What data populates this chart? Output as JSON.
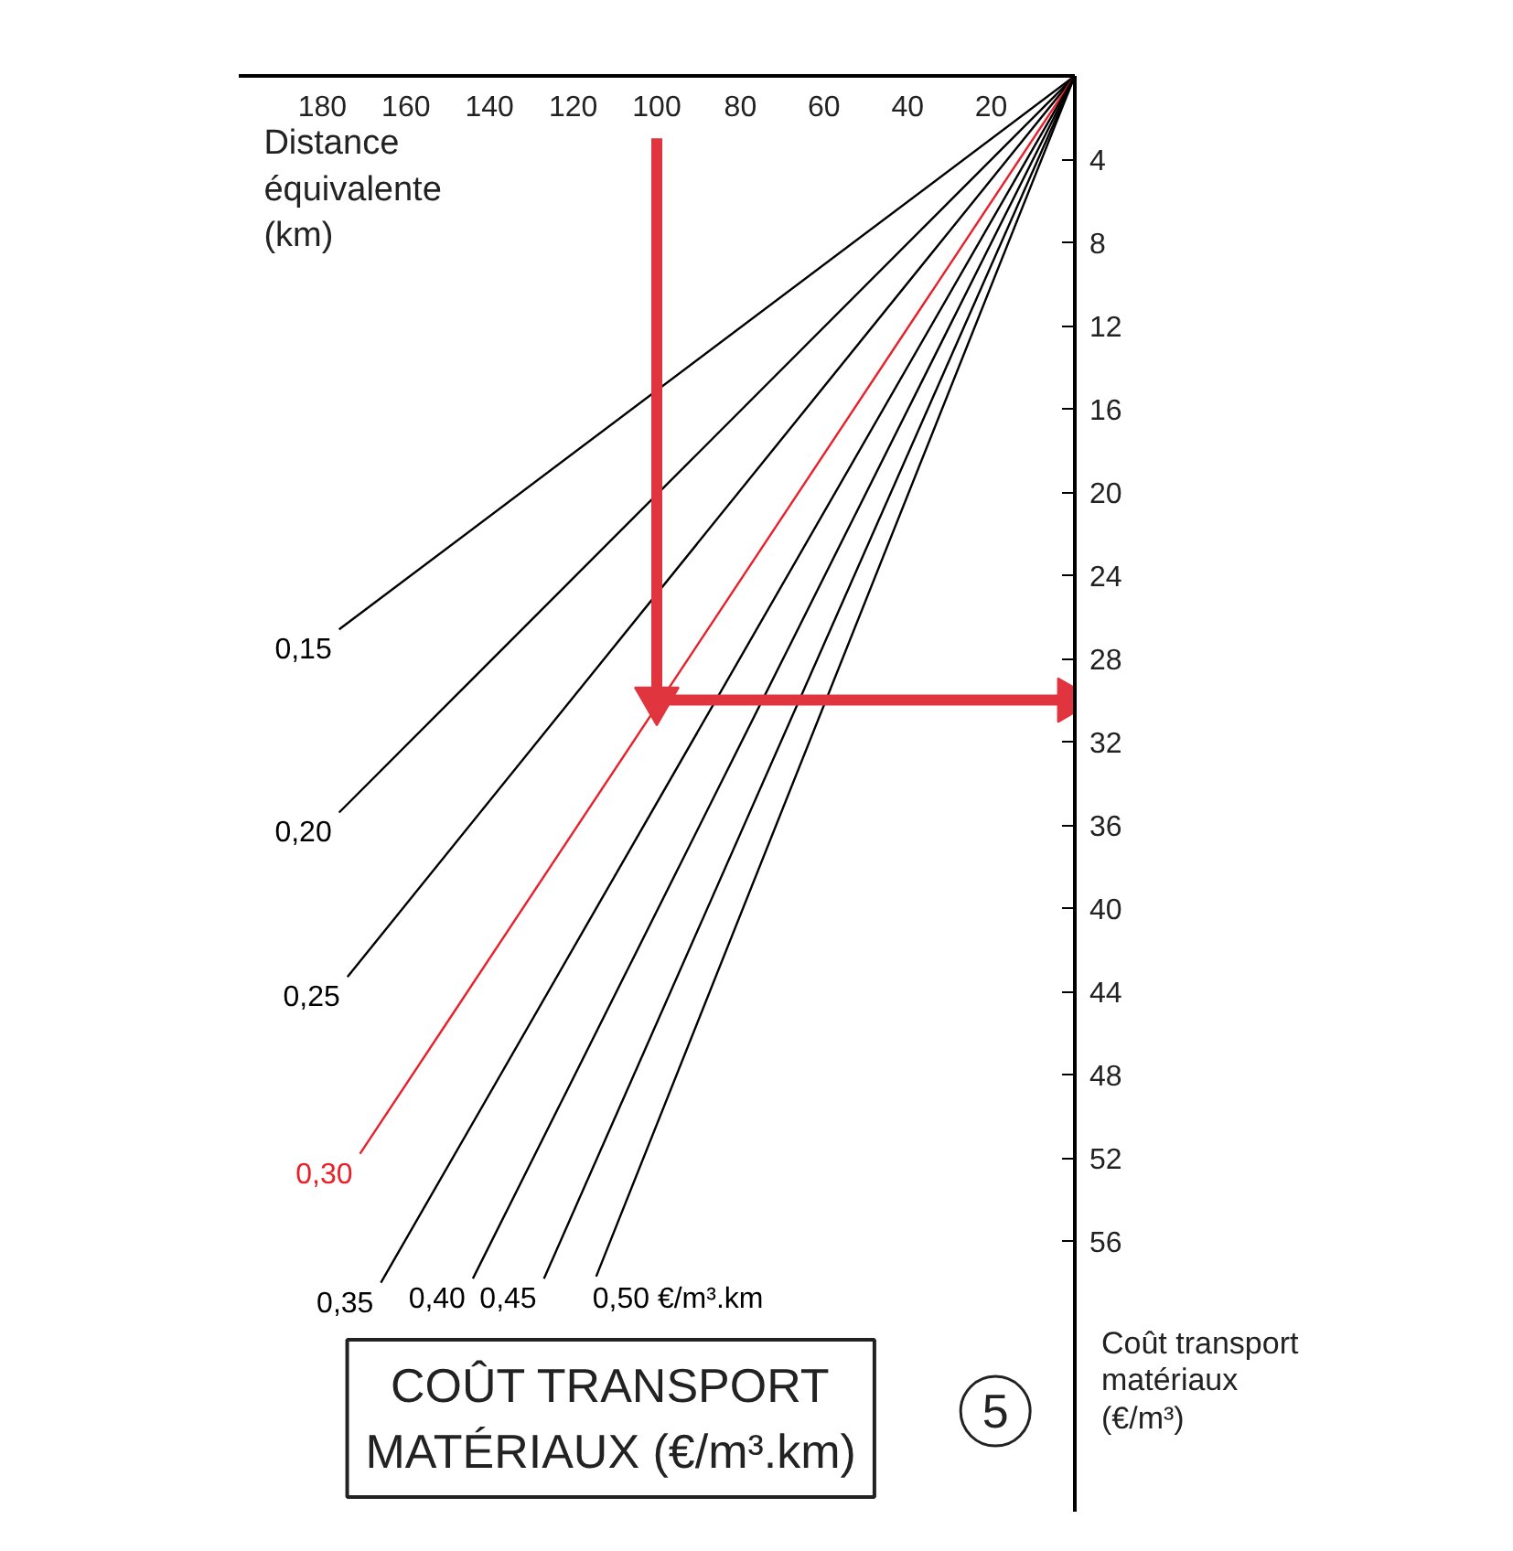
{
  "chart_data": {
    "type": "line",
    "title": "COÛT TRANSPORT MATÉRIAUX (€/m³.km)",
    "xlabel": "Distance équivalente (km)",
    "ylabel": "Coût transport matériaux (€/m³)",
    "annotations": [
      "5"
    ],
    "xlim": [
      200,
      0
    ],
    "ylim": [
      69,
      0
    ],
    "xticks": [
      20,
      40,
      60,
      80,
      100,
      120,
      140,
      160,
      180
    ],
    "yticks": [
      4,
      8,
      12,
      16,
      20,
      24,
      28,
      32,
      36,
      40,
      44,
      48,
      52,
      56
    ],
    "grid": false,
    "line_style": "solid",
    "series": [
      {
        "name": "0,15",
        "color": "#000000",
        "x": [
          0,
          176
        ],
        "values": [
          0,
          26.6
        ]
      },
      {
        "name": "0,20",
        "color": "#000000",
        "x": [
          0,
          176
        ],
        "values": [
          0,
          35.4
        ]
      },
      {
        "name": "0,25",
        "color": "#000000",
        "x": [
          0,
          174
        ],
        "values": [
          0,
          43.3
        ]
      },
      {
        "name": "0,30",
        "color": "#e8202a",
        "x": [
          0,
          171
        ],
        "values": [
          0,
          51.8
        ]
      },
      {
        "name": "0,35",
        "color": "#000000",
        "x": [
          0,
          166
        ],
        "values": [
          0,
          58.0
        ]
      },
      {
        "name": "0,40",
        "color": "#000000",
        "x": [
          0,
          144
        ],
        "values": [
          0,
          57.8
        ]
      },
      {
        "name": "0,45",
        "color": "#000000",
        "x": [
          0,
          127
        ],
        "values": [
          0,
          57.8
        ]
      },
      {
        "name": "0,50 €/m³.km",
        "color": "#000000",
        "x": [
          0,
          114.5
        ],
        "values": [
          0,
          57.7
        ]
      },
      {
        "color": "#e0343f",
        "marker": "triangle",
        "x": [
          100,
          100,
          1
        ],
        "values": [
          3,
          30,
          30
        ]
      }
    ]
  }
}
